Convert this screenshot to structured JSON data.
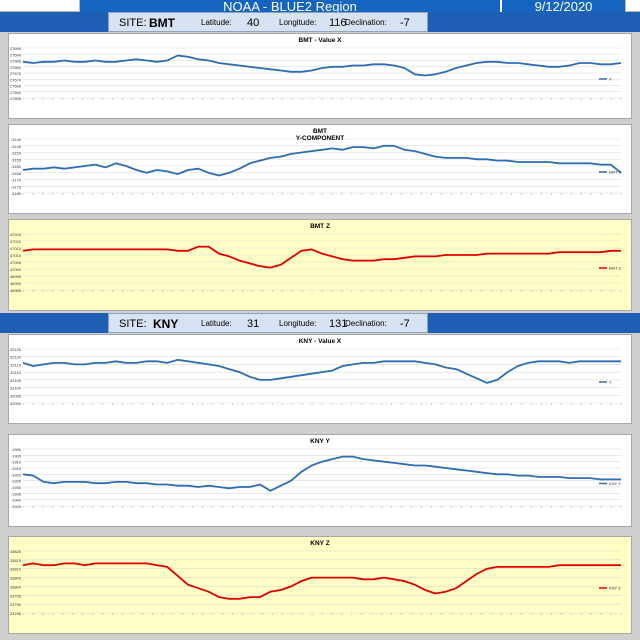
{
  "header": {
    "title": "NOAA - BLUE2 Region",
    "date": "9/12/2020"
  },
  "sites": [
    {
      "site_label": "SITE:",
      "site": "BMT",
      "lat_label": "Latitude:",
      "lat": "40",
      "lon_label": "Longitude:",
      "lon": "116",
      "dec_label": "Declination:",
      "dec": "-7"
    },
    {
      "site_label": "SITE:",
      "site": "KNY",
      "lat_label": "Latitude:",
      "lat": "31",
      "lon_label": "Longitude:",
      "lon": "131",
      "dec_label": "Declination:",
      "dec": "-7"
    }
  ],
  "colors": {
    "blue_line": "#2e6db4",
    "red_line": "#e00000",
    "header_blue": "#1565c0",
    "panel_yellow": "#ffffc6"
  },
  "chart_data": [
    {
      "type": "line",
      "title": "BMT - Value X",
      "legend": "X",
      "ytick_labels": [
        "27695",
        "27690",
        "27685",
        "27680",
        "27675",
        "27670",
        "27665",
        "27660",
        "27655"
      ],
      "ylim": [
        27655,
        27695
      ],
      "values": [
        27684,
        27683,
        27684,
        27684,
        27685,
        27684,
        27684,
        27685,
        27684,
        27684,
        27685,
        27686,
        27685,
        27684,
        27685,
        27689,
        27688,
        27686,
        27685,
        27683,
        27682,
        27681,
        27680,
        27679,
        27678,
        27677,
        27676,
        27676,
        27677,
        27679,
        27680,
        27680,
        27681,
        27681,
        27682,
        27682,
        27681,
        27679,
        27674,
        27673,
        27674,
        27676,
        27679,
        27681,
        27683,
        27684,
        27684,
        27683,
        27683,
        27682,
        27681,
        27680,
        27680,
        27681,
        27683,
        27683,
        27682,
        27682,
        27683
      ],
      "color": "#2e6db4"
    },
    {
      "type": "line",
      "title": "BMT\nY-COMPONENT",
      "legend": "BMT Y",
      "ytick_labels": [
        "-3140",
        "-3145",
        "-3150",
        "-3155",
        "-3160",
        "-3165",
        "-3170",
        "-3175",
        "-3180"
      ],
      "ylim": [
        -3180,
        -3140
      ],
      "values": [
        -3163,
        -3162,
        -3162,
        -3161,
        -3162,
        -3161,
        -3160,
        -3159,
        -3161,
        -3158,
        -3160,
        -3163,
        -3165,
        -3163,
        -3164,
        -3166,
        -3163,
        -3162,
        -3165,
        -3167,
        -3165,
        -3162,
        -3158,
        -3156,
        -3154,
        -3153,
        -3151,
        -3150,
        -3149,
        -3148,
        -3147,
        -3148,
        -3146,
        -3146,
        -3147,
        -3145,
        -3145,
        -3148,
        -3149,
        -3151,
        -3153,
        -3154,
        -3154,
        -3154,
        -3155,
        -3155,
        -3156,
        -3156,
        -3157,
        -3157,
        -3157,
        -3157,
        -3158,
        -3158,
        -3158,
        -3158,
        -3159,
        -3159,
        -3165
      ],
      "color": "#2e6db4"
    },
    {
      "type": "line",
      "title": "BMT Z",
      "legend": "BMT Z",
      "ytick_labels": [
        "47025",
        "47020",
        "47015",
        "47010",
        "47005",
        "47000",
        "46995",
        "46990",
        "46985"
      ],
      "ylim": [
        46985,
        47025
      ],
      "values": [
        47013,
        47014,
        47014,
        47014,
        47014,
        47014,
        47014,
        47014,
        47014,
        47014,
        47014,
        47014,
        47014,
        47014,
        47014,
        47013,
        47013,
        47016,
        47016,
        47011,
        47009,
        47006,
        47004,
        47002,
        47001,
        47003,
        47008,
        47013,
        47014,
        47011,
        47009,
        47007,
        47006,
        47006,
        47006,
        47007,
        47007,
        47008,
        47009,
        47009,
        47009,
        47010,
        47010,
        47010,
        47010,
        47011,
        47011,
        47011,
        47011,
        47011,
        47011,
        47011,
        47012,
        47012,
        47012,
        47012,
        47012,
        47013,
        47013
      ],
      "color": "#e00000"
    },
    {
      "type": "line",
      "title": "KNY - Value X",
      "legend": "X",
      "ytick_labels": [
        "32125",
        "32120",
        "32115",
        "32110",
        "32105",
        "32100",
        "32095",
        "32090"
      ],
      "ylim": [
        32090,
        32125
      ],
      "values": [
        32116,
        32114,
        32115,
        32116,
        32116,
        32115,
        32115,
        32116,
        32116,
        32117,
        32116,
        32116,
        32117,
        32117,
        32116,
        32118,
        32117,
        32116,
        32115,
        32114,
        32112,
        32110,
        32107,
        32105,
        32105,
        32106,
        32107,
        32108,
        32109,
        32110,
        32111,
        32114,
        32115,
        32116,
        32116,
        32117,
        32117,
        32117,
        32117,
        32116,
        32115,
        32113,
        32112,
        32109,
        32106,
        32103,
        32105,
        32110,
        32114,
        32116,
        32117,
        32117,
        32117,
        32116,
        32117,
        32117,
        32117,
        32117,
        32117
      ],
      "color": "#2e6db4"
    },
    {
      "type": "line",
      "title": "KNY Y",
      "legend": "KNY Y",
      "ytick_labels": [
        "-1900",
        "-1905",
        "-1910",
        "-1915",
        "-1920",
        "-1925",
        "-1930",
        "-1935",
        "-1940",
        "-1945"
      ],
      "ylim": [
        -1945,
        -1900
      ],
      "values": [
        -1920,
        -1921,
        -1926,
        -1927,
        -1926,
        -1926,
        -1926,
        -1927,
        -1927,
        -1926,
        -1926,
        -1927,
        -1927,
        -1928,
        -1928,
        -1929,
        -1929,
        -1930,
        -1929,
        -1930,
        -1931,
        -1930,
        -1930,
        -1928,
        -1933,
        -1929,
        -1925,
        -1918,
        -1913,
        -1910,
        -1908,
        -1906,
        -1906,
        -1908,
        -1909,
        -1910,
        -1911,
        -1912,
        -1913,
        -1913,
        -1914,
        -1915,
        -1916,
        -1917,
        -1918,
        -1919,
        -1920,
        -1920,
        -1921,
        -1921,
        -1922,
        -1922,
        -1922,
        -1923,
        -1923,
        -1923,
        -1924,
        -1924,
        -1924
      ],
      "color": "#2e6db4"
    },
    {
      "type": "line",
      "title": "KNY Z",
      "legend": "KNY Z",
      "ytick_labels": [
        "33820",
        "33815",
        "33810",
        "33805",
        "33800",
        "33795",
        "33790",
        "33785"
      ],
      "ylim": [
        33785,
        33820
      ],
      "values": [
        33812,
        33813,
        33812,
        33812,
        33813,
        33813,
        33812,
        33813,
        33813,
        33813,
        33813,
        33813,
        33813,
        33812,
        33811,
        33806,
        33801,
        33799,
        33797,
        33794,
        33793,
        33793,
        33794,
        33794,
        33797,
        33798,
        33800,
        33803,
        33805,
        33805,
        33805,
        33805,
        33805,
        33804,
        33804,
        33805,
        33804,
        33803,
        33801,
        33798,
        33796,
        33797,
        33799,
        33803,
        33807,
        33810,
        33811,
        33811,
        33811,
        33811,
        33811,
        33811,
        33812,
        33812,
        33812,
        33812,
        33812,
        33812,
        33812
      ],
      "color": "#e00000"
    }
  ]
}
